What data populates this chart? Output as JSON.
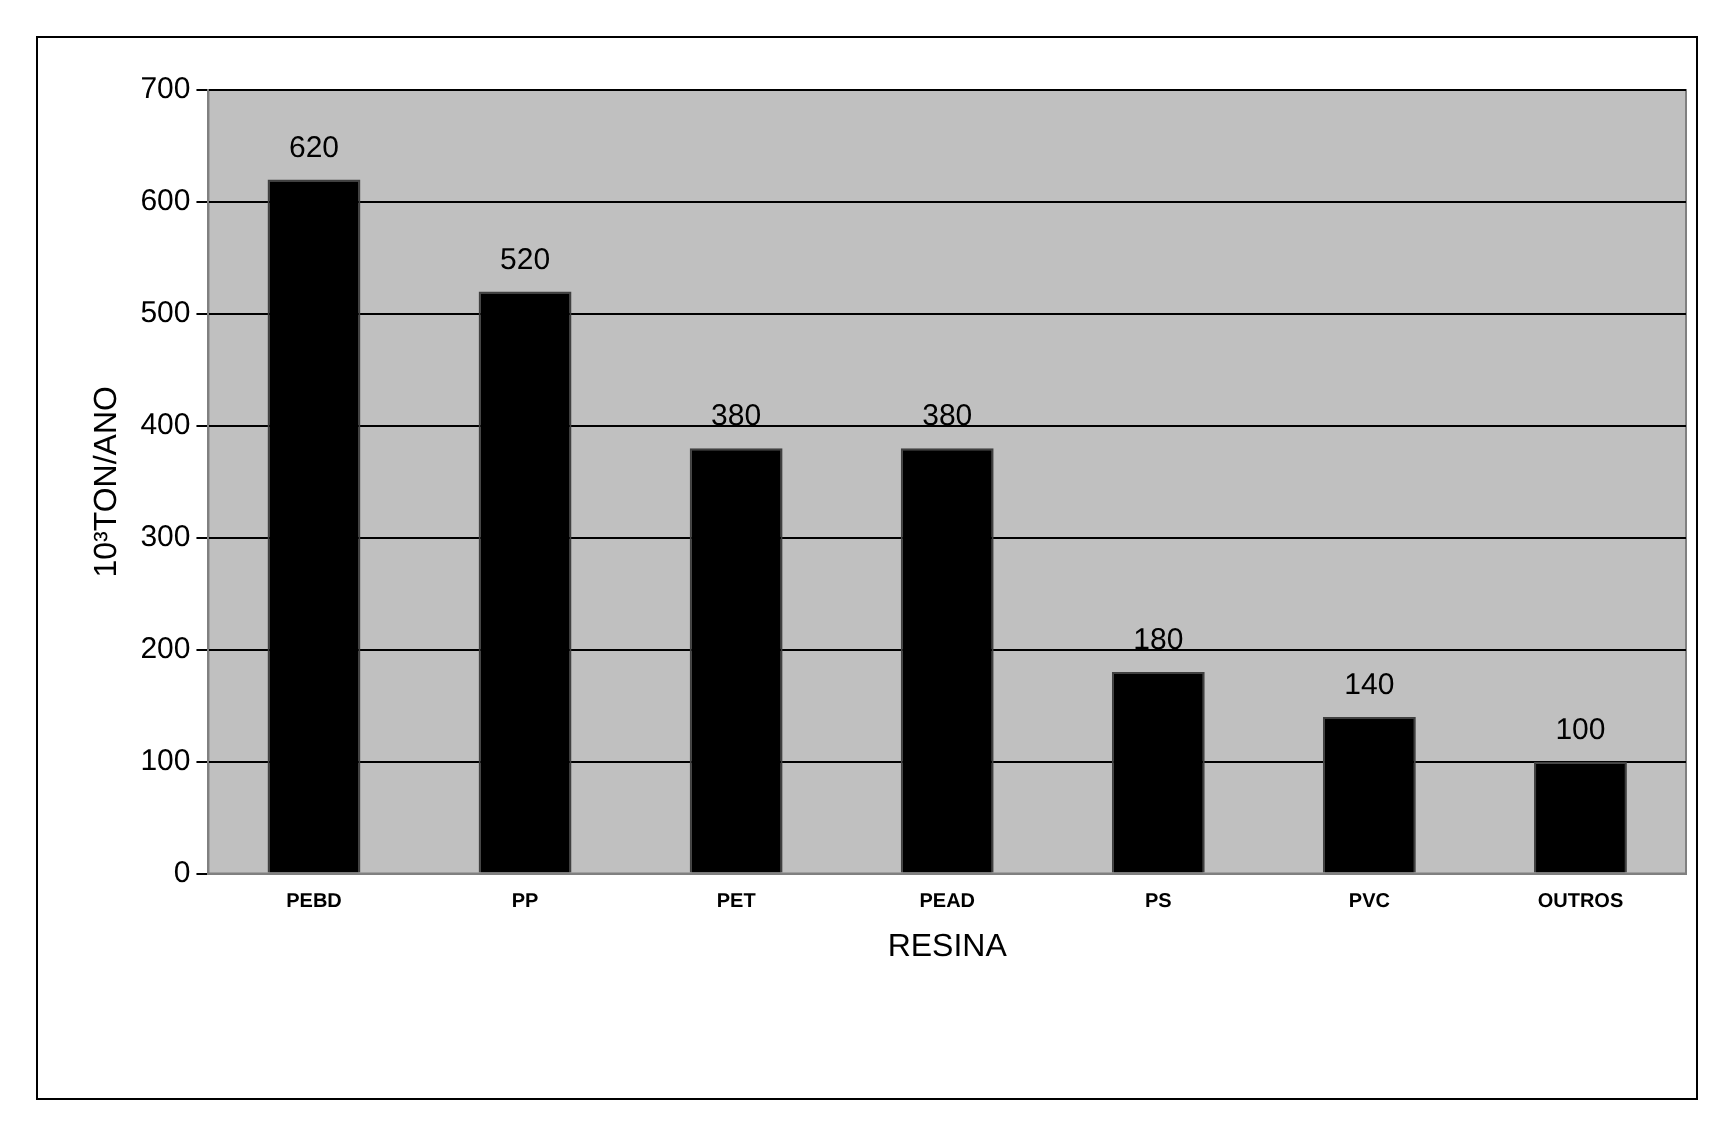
{
  "chart_data": {
    "type": "bar",
    "xlabel": "RESINA",
    "ylabel": "10³TON/ANO",
    "categories": [
      "PEBD",
      "PP",
      "PET",
      "PEAD",
      "PS",
      "PVC",
      "OUTROS"
    ],
    "values": [
      620,
      520,
      380,
      380,
      180,
      140,
      100
    ],
    "color": "#000000",
    "ylim": [
      0,
      700
    ],
    "yticks": [
      0,
      100,
      200,
      300,
      400,
      500,
      600,
      700
    ],
    "grid": "y",
    "data_labels": true
  }
}
